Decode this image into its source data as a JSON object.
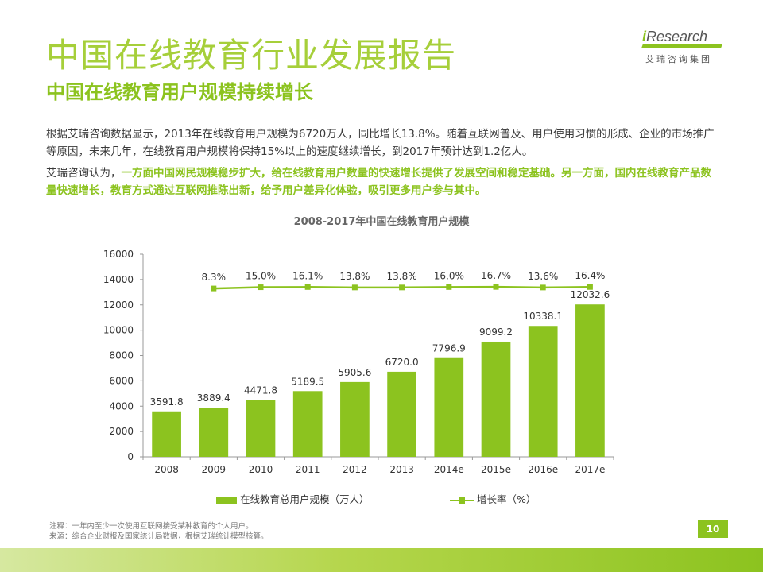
{
  "header": {
    "title": "中国在线教育行业发展报告",
    "subtitle": "中国在线教育用户规模持续增长"
  },
  "logo": {
    "brand_i": "i",
    "brand_rest": "Research",
    "tagline": "艾瑞咨询集团"
  },
  "body": {
    "para1": "根据艾瑞咨询数据显示，2013年在线教育用户规模为6720万人，同比增长13.8%。随着互联网普及、用户使用习惯的形成、企业的市场推广等原因，未来几年，在线教育用户规模将保持15%以上的速度继续增长，到2017年预计达到1.2亿人。",
    "para2_prefix": "艾瑞咨询认为，",
    "para2_highlight": "一方面中国网民规模稳步扩大，给在线教育用户数量的快速增长提供了发展空间和稳定基础。另一方面，国内在线教育产品数量快速增长，教育方式通过互联网推陈出新，给予用户差异化体验，吸引更多用户参与其中。"
  },
  "chart_data": {
    "type": "bar",
    "title": "2008-2017年中国在线教育用户规模",
    "categories": [
      "2008",
      "2009",
      "2010",
      "2011",
      "2012",
      "2013",
      "2014e",
      "2015e",
      "2016e",
      "2017e"
    ],
    "series": [
      {
        "name": "在线教育总用户规模（万人）",
        "type": "bar",
        "values": [
          3591.8,
          3889.4,
          4471.8,
          5189.5,
          5905.6,
          6720.0,
          7796.9,
          9099.2,
          10338.1,
          12032.6
        ],
        "labels": [
          "3591.8",
          "3889.4",
          "4471.8",
          "5189.5",
          "5905.6",
          "6720.0",
          "7796.9",
          "9099.2",
          "10338.1",
          "12032.6"
        ]
      },
      {
        "name": "增长率（%）",
        "type": "line",
        "values": [
          null,
          8.3,
          15.0,
          16.1,
          13.8,
          13.8,
          16.0,
          16.7,
          13.6,
          16.4
        ],
        "labels": [
          "",
          "8.3%",
          "15.0%",
          "16.1%",
          "13.8%",
          "13.8%",
          "16.0%",
          "16.7%",
          "13.6%",
          "16.4%"
        ]
      }
    ],
    "ylim": [
      0,
      16000
    ],
    "yticks": [
      "0",
      "2000",
      "4000",
      "6000",
      "8000",
      "10000",
      "12000",
      "14000",
      "16000"
    ],
    "xlabel": "",
    "ylabel": "",
    "legend": "bottom",
    "color": "#8cc31f"
  },
  "footnotes": {
    "note": "注释：一年内至少一次使用互联网接受某种教育的个人用户。",
    "source": "来源：综合企业财报及国家统计局数据，根据艾瑞统计模型核算。"
  },
  "page_number": "10"
}
